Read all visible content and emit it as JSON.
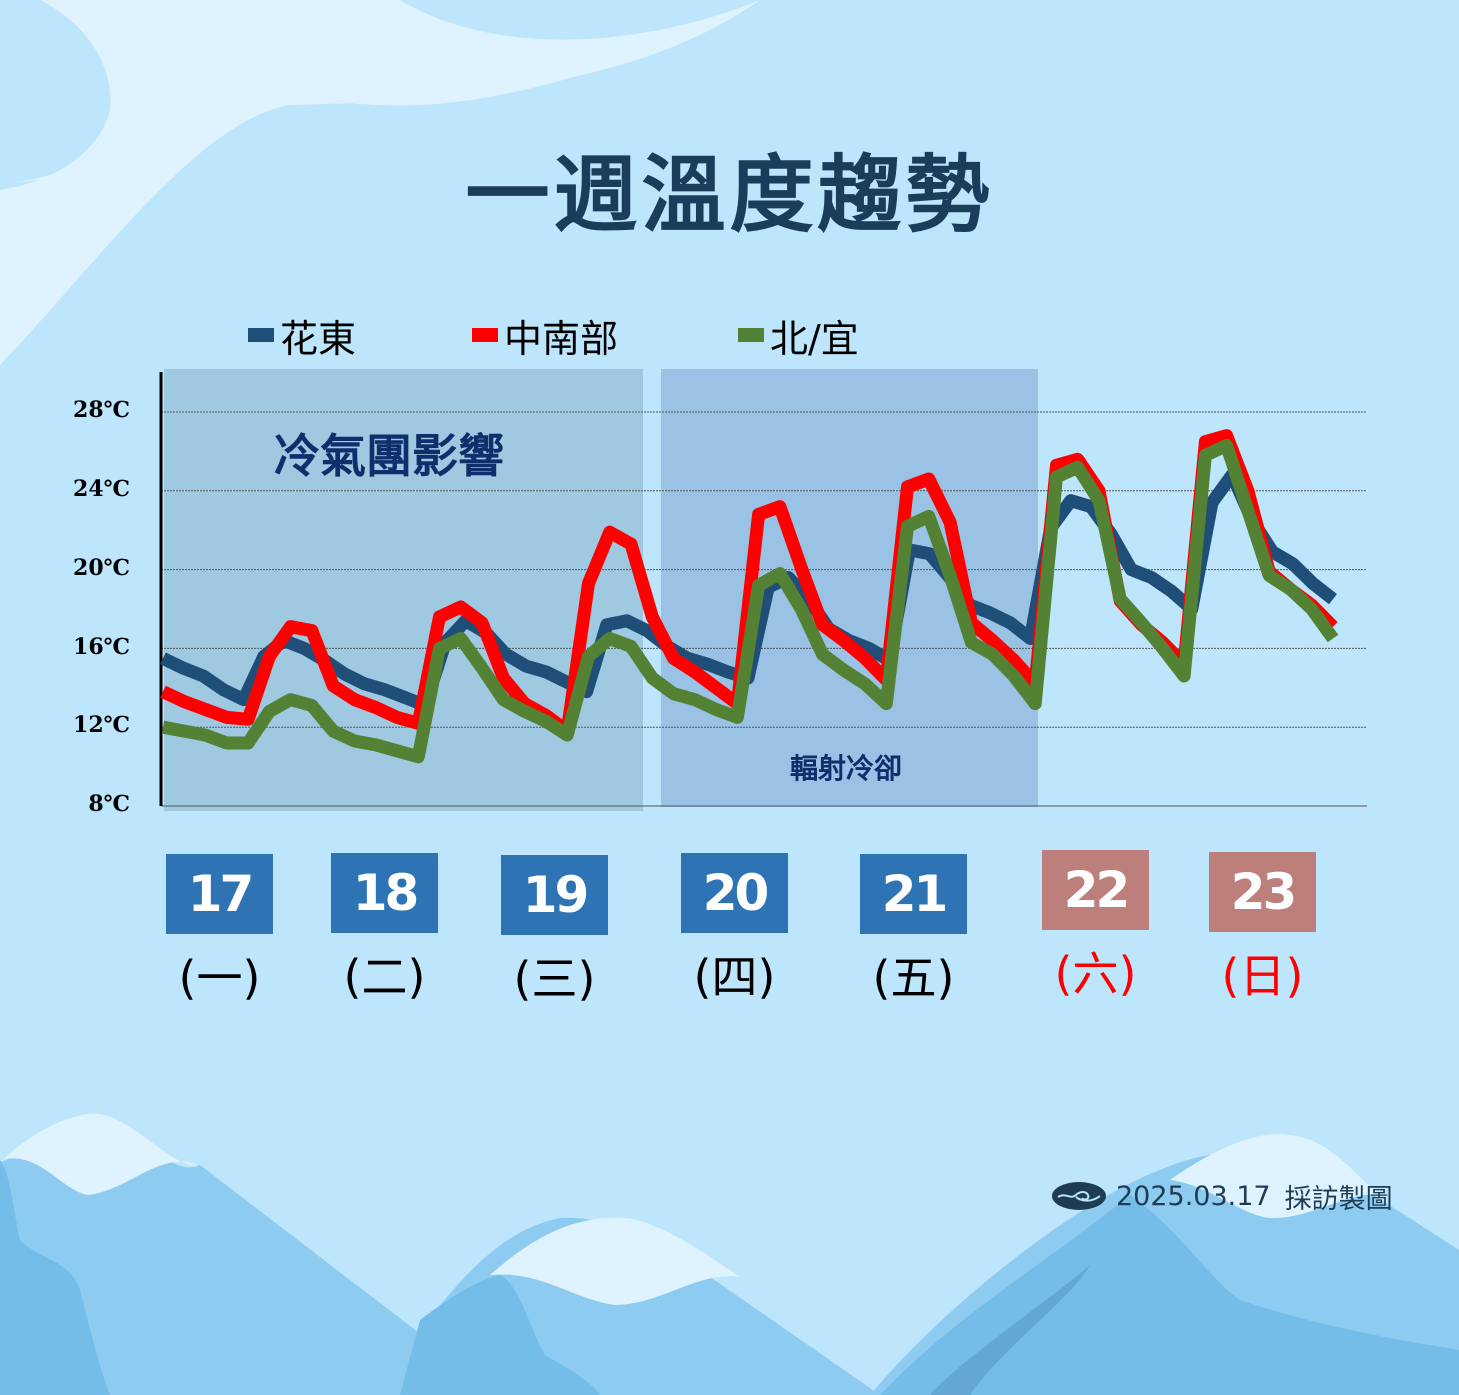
{
  "title": "一週溫度趨勢",
  "legend": [
    {
      "label": "花東",
      "color": "#1f4e79"
    },
    {
      "label": "中南部",
      "color": "#ff0000"
    },
    {
      "label": "北/宜",
      "color": "#548235"
    }
  ],
  "annotations": {
    "cold_air": "冷氣團影響",
    "radiative_cooling": "輻射冷卻"
  },
  "days": [
    {
      "date": "17",
      "weekday": "(一)",
      "weekend": false
    },
    {
      "date": "18",
      "weekday": "(二)",
      "weekend": false
    },
    {
      "date": "19",
      "weekday": "(三)",
      "weekend": false
    },
    {
      "date": "20",
      "weekday": "(四)",
      "weekend": false
    },
    {
      "date": "21",
      "weekday": "(五)",
      "weekend": false
    },
    {
      "date": "22",
      "weekday": "(六)",
      "weekend": true
    },
    {
      "date": "23",
      "weekday": "(日)",
      "weekend": true
    }
  ],
  "footer": {
    "date": "2025.03.17",
    "credit": "採訪製圖"
  },
  "chart_data": {
    "type": "line",
    "title": "一週溫度趨勢",
    "xlabel": "",
    "ylabel": "",
    "ylim": [
      8,
      28
    ],
    "yticks": [
      "28℃",
      "24℃",
      "20℃",
      "16℃",
      "12℃",
      "8℃"
    ],
    "grid": true,
    "legend_position": "top",
    "categories": [
      "17(一)",
      "18(二)",
      "19(三)",
      "20(四)",
      "21(五)",
      "22(六)",
      "23(日)"
    ],
    "shaded_regions": [
      {
        "label": "冷氣團影響",
        "days": [
          "17",
          "18",
          "19"
        ]
      },
      {
        "label": "輻射冷卻",
        "days": [
          "20",
          "21"
        ]
      }
    ],
    "points_per_day": 8,
    "series": [
      {
        "name": "花東",
        "color": "#1f4e79",
        "values": [
          15.5,
          15.0,
          14.6,
          13.9,
          13.4,
          15.6,
          16.4,
          16.0,
          15.4,
          14.7,
          14.2,
          13.9,
          13.5,
          13.1,
          16.3,
          17.4,
          16.8,
          15.7,
          15.1,
          14.8,
          14.3,
          13.8,
          17.2,
          17.4,
          16.9,
          16.1,
          15.5,
          15.2,
          14.8,
          14.5,
          19.1,
          19.6,
          18.5,
          17.0,
          16.4,
          16.0,
          15.4,
          21.0,
          20.8,
          19.6,
          18.2,
          17.8,
          17.3,
          16.5,
          22.1,
          23.5,
          23.2,
          21.8,
          20.0,
          19.6,
          18.9,
          18.0,
          23.4,
          24.8,
          22.5,
          20.9,
          20.3,
          19.3,
          18.5
        ]
      },
      {
        "name": "中南部",
        "color": "#ff0000",
        "values": [
          13.8,
          13.3,
          12.9,
          12.5,
          12.4,
          15.6,
          17.1,
          16.9,
          14.1,
          13.4,
          13.0,
          12.5,
          12.2,
          17.6,
          18.1,
          17.3,
          14.5,
          13.2,
          12.6,
          11.8,
          19.3,
          21.9,
          21.3,
          17.6,
          15.5,
          14.8,
          14.0,
          13.2,
          22.8,
          23.2,
          20.1,
          17.2,
          16.4,
          15.5,
          14.4,
          24.2,
          24.6,
          22.4,
          17.3,
          16.4,
          15.4,
          14.2,
          25.3,
          25.6,
          24.0,
          18.4,
          17.2,
          16.3,
          15.2,
          26.5,
          26.8,
          24.0,
          19.9,
          19.0,
          18.2,
          17.1
        ]
      },
      {
        "name": "北/宜",
        "color": "#548235",
        "values": [
          12.0,
          11.8,
          11.6,
          11.2,
          11.2,
          12.8,
          13.4,
          13.1,
          11.8,
          11.3,
          11.1,
          10.8,
          10.5,
          16.0,
          16.5,
          15.0,
          13.4,
          12.8,
          12.3,
          11.6,
          15.6,
          16.5,
          16.1,
          14.5,
          13.7,
          13.4,
          12.9,
          12.5,
          19.2,
          19.8,
          18.0,
          15.7,
          14.9,
          14.2,
          13.2,
          22.2,
          22.7,
          19.7,
          16.3,
          15.7,
          14.6,
          13.2,
          24.7,
          25.2,
          23.5,
          18.5,
          17.3,
          16.0,
          14.6,
          25.8,
          26.3,
          23.0,
          19.7,
          19.0,
          18.0,
          16.5
        ]
      }
    ]
  }
}
